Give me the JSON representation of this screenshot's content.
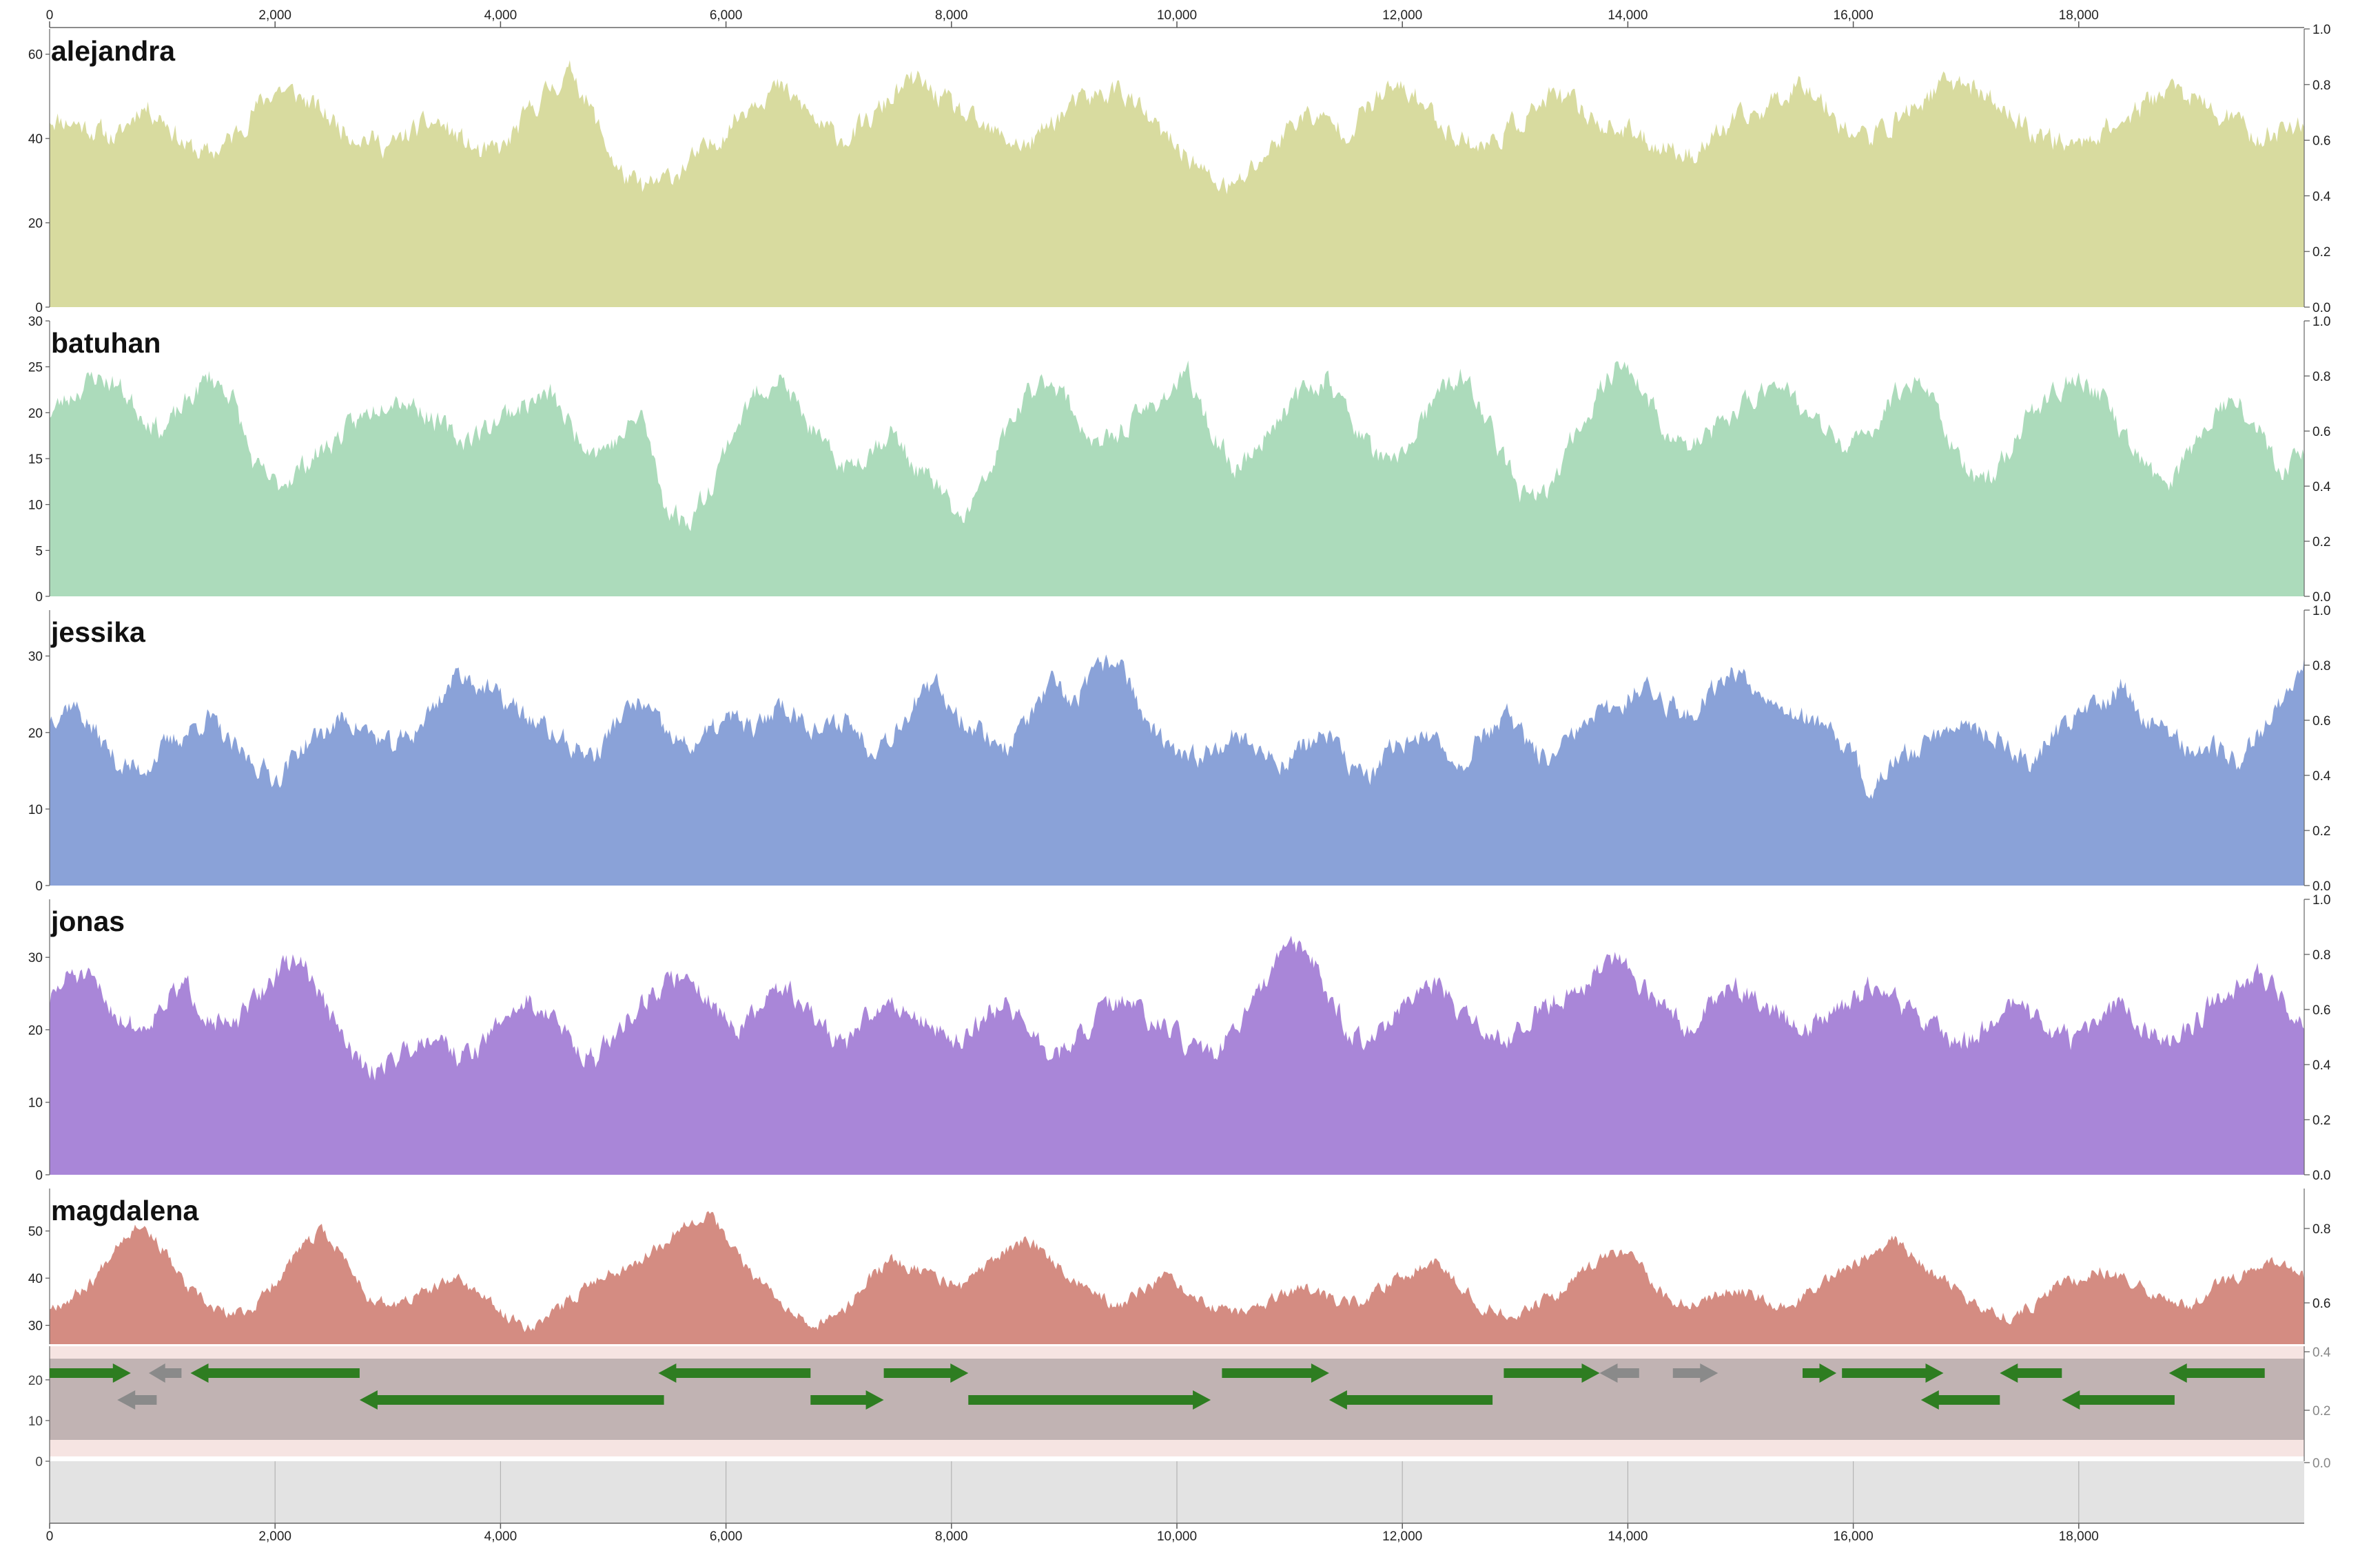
{
  "x_axis": {
    "ticks": [
      "0",
      "2,000",
      "4,000",
      "6,000",
      "8,000",
      "10,000",
      "12,000",
      "14,000",
      "16,000",
      "18,000"
    ],
    "range": [
      0,
      20000
    ]
  },
  "right_axis_ticks": [
    "0.0",
    "0.2",
    "0.4",
    "0.6",
    "0.8",
    "1.0"
  ],
  "tracks": [
    {
      "name": "alejandra",
      "color": "#d8db9f",
      "y_ticks": [
        "0",
        "20",
        "40",
        "60"
      ],
      "y_min": 0,
      "y_max": 66,
      "right_ticks": [
        "0.0",
        "0.2",
        "0.4",
        "0.6",
        "0.8",
        "1.0"
      ],
      "coverage_profile": [
        45,
        44,
        42,
        40,
        48,
        45,
        38,
        36,
        40,
        47,
        52,
        50,
        46,
        42,
        40,
        38,
        42,
        44,
        40,
        36,
        38,
        46,
        52,
        56,
        44,
        32,
        28,
        30,
        34,
        38,
        44,
        50,
        52,
        48,
        42,
        40,
        44,
        50,
        54,
        50,
        46,
        42,
        40,
        38,
        44,
        48,
        50,
        52,
        46,
        40,
        36,
        30,
        28,
        34,
        40,
        46,
        44,
        42,
        48,
        52,
        50,
        44,
        40,
        38,
        42,
        46,
        50,
        48,
        44,
        42,
        40,
        38,
        36,
        40,
        44,
        46,
        50,
        54,
        48,
        42,
        40,
        44,
        48,
        52,
        54,
        50,
        46,
        42,
        40,
        38,
        42,
        44,
        48,
        52,
        50,
        46,
        44,
        40,
        42,
        44
      ],
      "seed": 11
    },
    {
      "name": "batuhan",
      "color": "#acdbbb",
      "y_ticks": [
        "0",
        "5",
        "10",
        "15",
        "20",
        "25",
        "30"
      ],
      "y_min": 0,
      "y_max": 30,
      "right_ticks": [
        "0.0",
        "0.2",
        "0.4",
        "0.6",
        "0.8",
        "1.0"
      ],
      "coverage_profile": [
        20,
        22,
        24,
        23,
        20,
        18,
        21,
        24,
        22,
        14,
        12,
        14,
        16,
        18,
        20,
        22,
        21,
        19,
        17,
        18,
        20,
        21,
        22,
        18,
        16,
        17,
        20,
        10,
        8,
        12,
        18,
        22,
        24,
        20,
        16,
        14,
        16,
        18,
        14,
        12,
        8,
        12,
        18,
        22,
        24,
        20,
        16,
        18,
        20,
        22,
        24,
        18,
        14,
        16,
        20,
        22,
        24,
        20,
        16,
        14,
        18,
        22,
        24,
        20,
        14,
        10,
        12,
        18,
        22,
        26,
        22,
        18,
        16,
        18,
        20,
        22,
        24,
        20,
        18,
        16,
        18,
        22,
        24,
        20,
        14,
        12,
        16,
        20,
        22,
        24,
        22,
        18,
        14,
        12,
        16,
        20,
        22,
        18,
        14,
        16
      ],
      "seed": 23
    },
    {
      "name": "jessika",
      "color": "#8aa2d8",
      "y_ticks": [
        "0",
        "10",
        "20",
        "30"
      ],
      "y_min": 0,
      "y_max": 36,
      "right_ticks": [
        "0.0",
        "0.2",
        "0.4",
        "0.6",
        "0.8",
        "1.0"
      ],
      "coverage_profile": [
        22,
        24,
        20,
        16,
        15,
        18,
        20,
        22,
        18,
        16,
        14,
        18,
        20,
        22,
        20,
        18,
        20,
        24,
        28,
        26,
        24,
        22,
        20,
        18,
        17,
        22,
        24,
        20,
        18,
        20,
        22,
        20,
        24,
        22,
        20,
        22,
        18,
        20,
        24,
        26,
        22,
        20,
        18,
        22,
        26,
        24,
        28,
        30,
        22,
        18,
        16,
        18,
        20,
        18,
        16,
        18,
        20,
        16,
        14,
        18,
        20,
        18,
        16,
        20,
        22,
        18,
        16,
        20,
        22,
        24,
        26,
        24,
        22,
        26,
        28,
        26,
        24,
        22,
        20,
        18,
        12,
        16,
        18,
        20,
        22,
        20,
        18,
        16,
        20,
        22,
        24,
        26,
        22,
        20,
        18,
        18,
        16,
        20,
        24,
        30
      ],
      "seed": 37
    },
    {
      "name": "jonas",
      "color": "#a986d8",
      "y_ticks": [
        "0",
        "10",
        "20",
        "30"
      ],
      "y_min": 0,
      "y_max": 38,
      "right_ticks": [
        "0.0",
        "0.2",
        "0.4",
        "0.6",
        "0.8",
        "1.0"
      ],
      "coverage_profile": [
        24,
        28,
        26,
        22,
        20,
        24,
        26,
        22,
        20,
        24,
        28,
        30,
        24,
        18,
        14,
        16,
        18,
        20,
        16,
        18,
        22,
        24,
        22,
        18,
        16,
        20,
        24,
        26,
        28,
        24,
        20,
        22,
        26,
        24,
        20,
        18,
        22,
        24,
        22,
        20,
        18,
        22,
        24,
        20,
        16,
        18,
        22,
        24,
        22,
        20,
        18,
        16,
        20,
        24,
        30,
        32,
        26,
        20,
        18,
        22,
        24,
        26,
        22,
        20,
        18,
        22,
        24,
        26,
        28,
        30,
        26,
        22,
        20,
        24,
        26,
        24,
        22,
        20,
        22,
        24,
        26,
        24,
        22,
        20,
        18,
        20,
        24,
        22,
        20,
        18,
        22,
        24,
        20,
        18,
        20,
        24,
        26,
        28,
        24,
        20
      ],
      "seed": 51
    },
    {
      "name": "magdalena",
      "color": "#d48c82",
      "y_ticks": [
        "30",
        "40",
        "50"
      ],
      "y_min": 26,
      "y_max": 59,
      "right_ticks": [
        "0.6",
        "0.8"
      ],
      "coverage_profile": [
        34,
        36,
        40,
        48,
        52,
        46,
        38,
        34,
        32,
        34,
        40,
        46,
        50,
        44,
        36,
        34,
        36,
        38,
        40,
        36,
        32,
        30,
        32,
        36,
        40,
        42,
        44,
        48,
        52,
        54,
        46,
        40,
        36,
        32,
        30,
        34,
        40,
        44,
        42,
        40,
        38,
        42,
        46,
        48,
        44,
        40,
        36,
        34,
        38,
        40,
        36,
        34,
        32,
        34,
        36,
        38,
        36,
        34,
        36,
        40,
        42,
        44,
        38,
        34,
        32,
        34,
        36,
        40,
        44,
        46,
        42,
        36,
        34,
        36,
        38,
        36,
        34,
        36,
        40,
        42,
        46,
        48,
        44,
        40,
        36,
        34,
        32,
        34,
        38,
        40,
        42,
        40,
        38,
        36,
        34,
        38,
        40,
        42,
        44,
        40
      ],
      "seed": 67
    }
  ],
  "annotation_track": {
    "y_ticks": [
      "0",
      "10",
      "20"
    ],
    "right_ticks": [
      "0.0",
      "0.2",
      "0.4"
    ],
    "band_color": "#c1b3b3",
    "forward_color": "#2e7d21",
    "neutral_color": "#8a8a8a",
    "features": [
      {
        "start": 0,
        "end": 720,
        "strand": "+",
        "kind": "gene",
        "row": 0
      },
      {
        "start": 880,
        "end": 1170,
        "strand": "-",
        "kind": "other",
        "row": 0
      },
      {
        "start": 1250,
        "end": 2750,
        "strand": "-",
        "kind": "gene",
        "row": 0
      },
      {
        "start": 5400,
        "end": 6750,
        "strand": "-",
        "kind": "gene",
        "row": 0
      },
      {
        "start": 7400,
        "end": 8150,
        "strand": "+",
        "kind": "gene",
        "row": 0
      },
      {
        "start": 10400,
        "end": 11350,
        "strand": "+",
        "kind": "gene",
        "row": 0
      },
      {
        "start": 12900,
        "end": 13750,
        "strand": "+",
        "kind": "gene",
        "row": 0
      },
      {
        "start": 13750,
        "end": 14100,
        "strand": "-",
        "kind": "other",
        "row": 0
      },
      {
        "start": 14400,
        "end": 14800,
        "strand": "+",
        "kind": "other",
        "row": 0
      },
      {
        "start": 15550,
        "end": 15850,
        "strand": "+",
        "kind": "gene",
        "row": 0
      },
      {
        "start": 15900,
        "end": 16800,
        "strand": "+",
        "kind": "gene",
        "row": 0
      },
      {
        "start": 17300,
        "end": 17850,
        "strand": "-",
        "kind": "gene",
        "row": 0
      },
      {
        "start": 18800,
        "end": 19650,
        "strand": "-",
        "kind": "gene",
        "row": 0
      },
      {
        "start": 600,
        "end": 950,
        "strand": "-",
        "kind": "other",
        "row": 1
      },
      {
        "start": 2750,
        "end": 5450,
        "strand": "-",
        "kind": "gene",
        "row": 1
      },
      {
        "start": 6750,
        "end": 7400,
        "strand": "+",
        "kind": "gene",
        "row": 1
      },
      {
        "start": 8150,
        "end": 10300,
        "strand": "+",
        "kind": "gene",
        "row": 1
      },
      {
        "start": 11350,
        "end": 12800,
        "strand": "-",
        "kind": "gene",
        "row": 1
      },
      {
        "start": 16600,
        "end": 17300,
        "strand": "-",
        "kind": "gene",
        "row": 1
      },
      {
        "start": 17850,
        "end": 18850,
        "strand": "-",
        "kind": "gene",
        "row": 1
      }
    ]
  }
}
